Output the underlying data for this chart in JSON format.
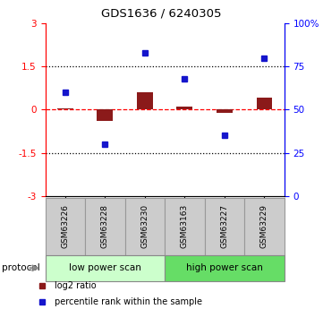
{
  "title": "GDS1636 / 6240305",
  "samples": [
    "GSM63226",
    "GSM63228",
    "GSM63230",
    "GSM63163",
    "GSM63227",
    "GSM63229"
  ],
  "log2_ratio": [
    0.05,
    -0.4,
    0.6,
    0.12,
    -0.12,
    0.42
  ],
  "percentile_rank": [
    60,
    30,
    83,
    68,
    35,
    80
  ],
  "ylim_left": [
    -3,
    3
  ],
  "ylim_right": [
    0,
    100
  ],
  "yticks_left": [
    -3,
    -1.5,
    0,
    1.5,
    3
  ],
  "yticks_right": [
    0,
    25,
    50,
    75,
    100
  ],
  "yticklabels_left": [
    "-3",
    "-1.5",
    "0",
    "1.5",
    "3"
  ],
  "yticklabels_right": [
    "0",
    "25",
    "50",
    "75",
    "100%"
  ],
  "dotted_lines": [
    1.5,
    -1.5
  ],
  "zero_line": 0,
  "bar_color": "#8B1A1A",
  "dot_color": "#1515cc",
  "groups": [
    {
      "label": "low power scan",
      "indices": [
        0,
        1,
        2
      ],
      "color": "#ccffcc"
    },
    {
      "label": "high power scan",
      "indices": [
        3,
        4,
        5
      ],
      "color": "#66dd66"
    }
  ],
  "protocol_label": "protocol",
  "legend_items": [
    {
      "color": "#8B1A1A",
      "label": "log2 ratio"
    },
    {
      "color": "#1515cc",
      "label": "percentile rank within the sample"
    }
  ],
  "sample_box_color": "#cccccc",
  "sample_box_edge": "#999999",
  "fig_width": 3.61,
  "fig_height": 3.45,
  "dpi": 100
}
